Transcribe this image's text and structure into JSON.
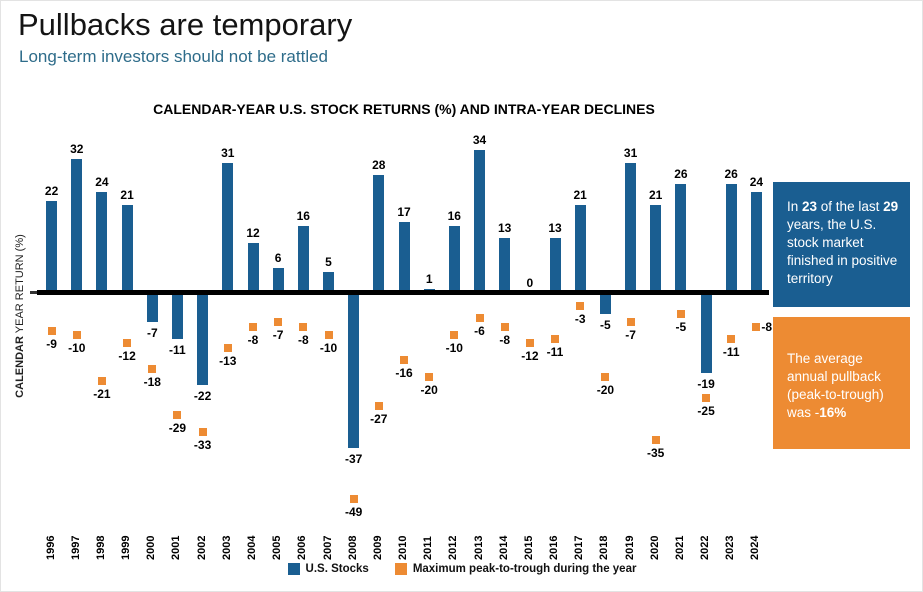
{
  "header": {
    "title": "Pullbacks are temporary",
    "subtitle": "Long-term investors should not be rattled"
  },
  "chart_data": {
    "type": "bar",
    "title": "CALENDAR-YEAR U.S. STOCK RETURNS (%) AND INTRA-YEAR DECLINES",
    "ylabel": "CALENDAR YEAR RETURN (%)",
    "ylabel_bold_prefix": "CALENDAR",
    "ylabel_rest": " YEAR RETURN (%)",
    "xlabel": "",
    "grid": false,
    "legend_position": "bottom",
    "ylim": [
      -55,
      40
    ],
    "baseline": 0,
    "categories": [
      "1996",
      "1997",
      "1998",
      "1999",
      "2000",
      "2001",
      "2002",
      "2003",
      "2004",
      "2005",
      "2006",
      "2007",
      "2008",
      "2009",
      "2010",
      "2011",
      "2012",
      "2013",
      "2014",
      "2015",
      "2016",
      "2017",
      "2018",
      "2019",
      "2020",
      "2021",
      "2022",
      "2023",
      "2024"
    ],
    "series": [
      {
        "name": "U.S. Stocks",
        "type": "bar",
        "color": "#1a5e91",
        "values": [
          22,
          32,
          24,
          21,
          -7,
          -11,
          -22,
          31,
          12,
          6,
          16,
          5,
          -37,
          28,
          17,
          1,
          16,
          34,
          13,
          0,
          13,
          21,
          -5,
          31,
          21,
          26,
          -19,
          26,
          24
        ]
      },
      {
        "name": "Maximum peak-to-trough during the year",
        "type": "scatter",
        "color": "#ed8b33",
        "values": [
          -9,
          -10,
          -21,
          -12,
          -18,
          -29,
          -33,
          -13,
          -8,
          -7,
          -8,
          -10,
          -49,
          -27,
          -16,
          -20,
          -10,
          -6,
          -8,
          -12,
          -11,
          -3,
          -20,
          -7,
          -35,
          -5,
          -25,
          -11,
          -8
        ]
      }
    ]
  },
  "callouts": {
    "positive_years": {
      "bg": "#1a5e91",
      "segments": [
        {
          "t": "In ",
          "b": false
        },
        {
          "t": "23",
          "b": true
        },
        {
          "t": " of the last ",
          "b": false
        },
        {
          "t": "29",
          "b": true
        },
        {
          "t": " years, the U.S. stock market finished in positive territory",
          "b": false
        }
      ]
    },
    "average_pullback": {
      "bg": "#ed8b33",
      "segments": [
        {
          "t": "The average annual pullback (peak-to-trough) was -",
          "b": false
        },
        {
          "t": "16%",
          "b": true
        }
      ]
    }
  },
  "colors": {
    "bar_blue": "#1a5e91",
    "marker_orange": "#ed8b33",
    "subtitle_blue": "#2e6c8a",
    "axis_black": "#000000"
  }
}
